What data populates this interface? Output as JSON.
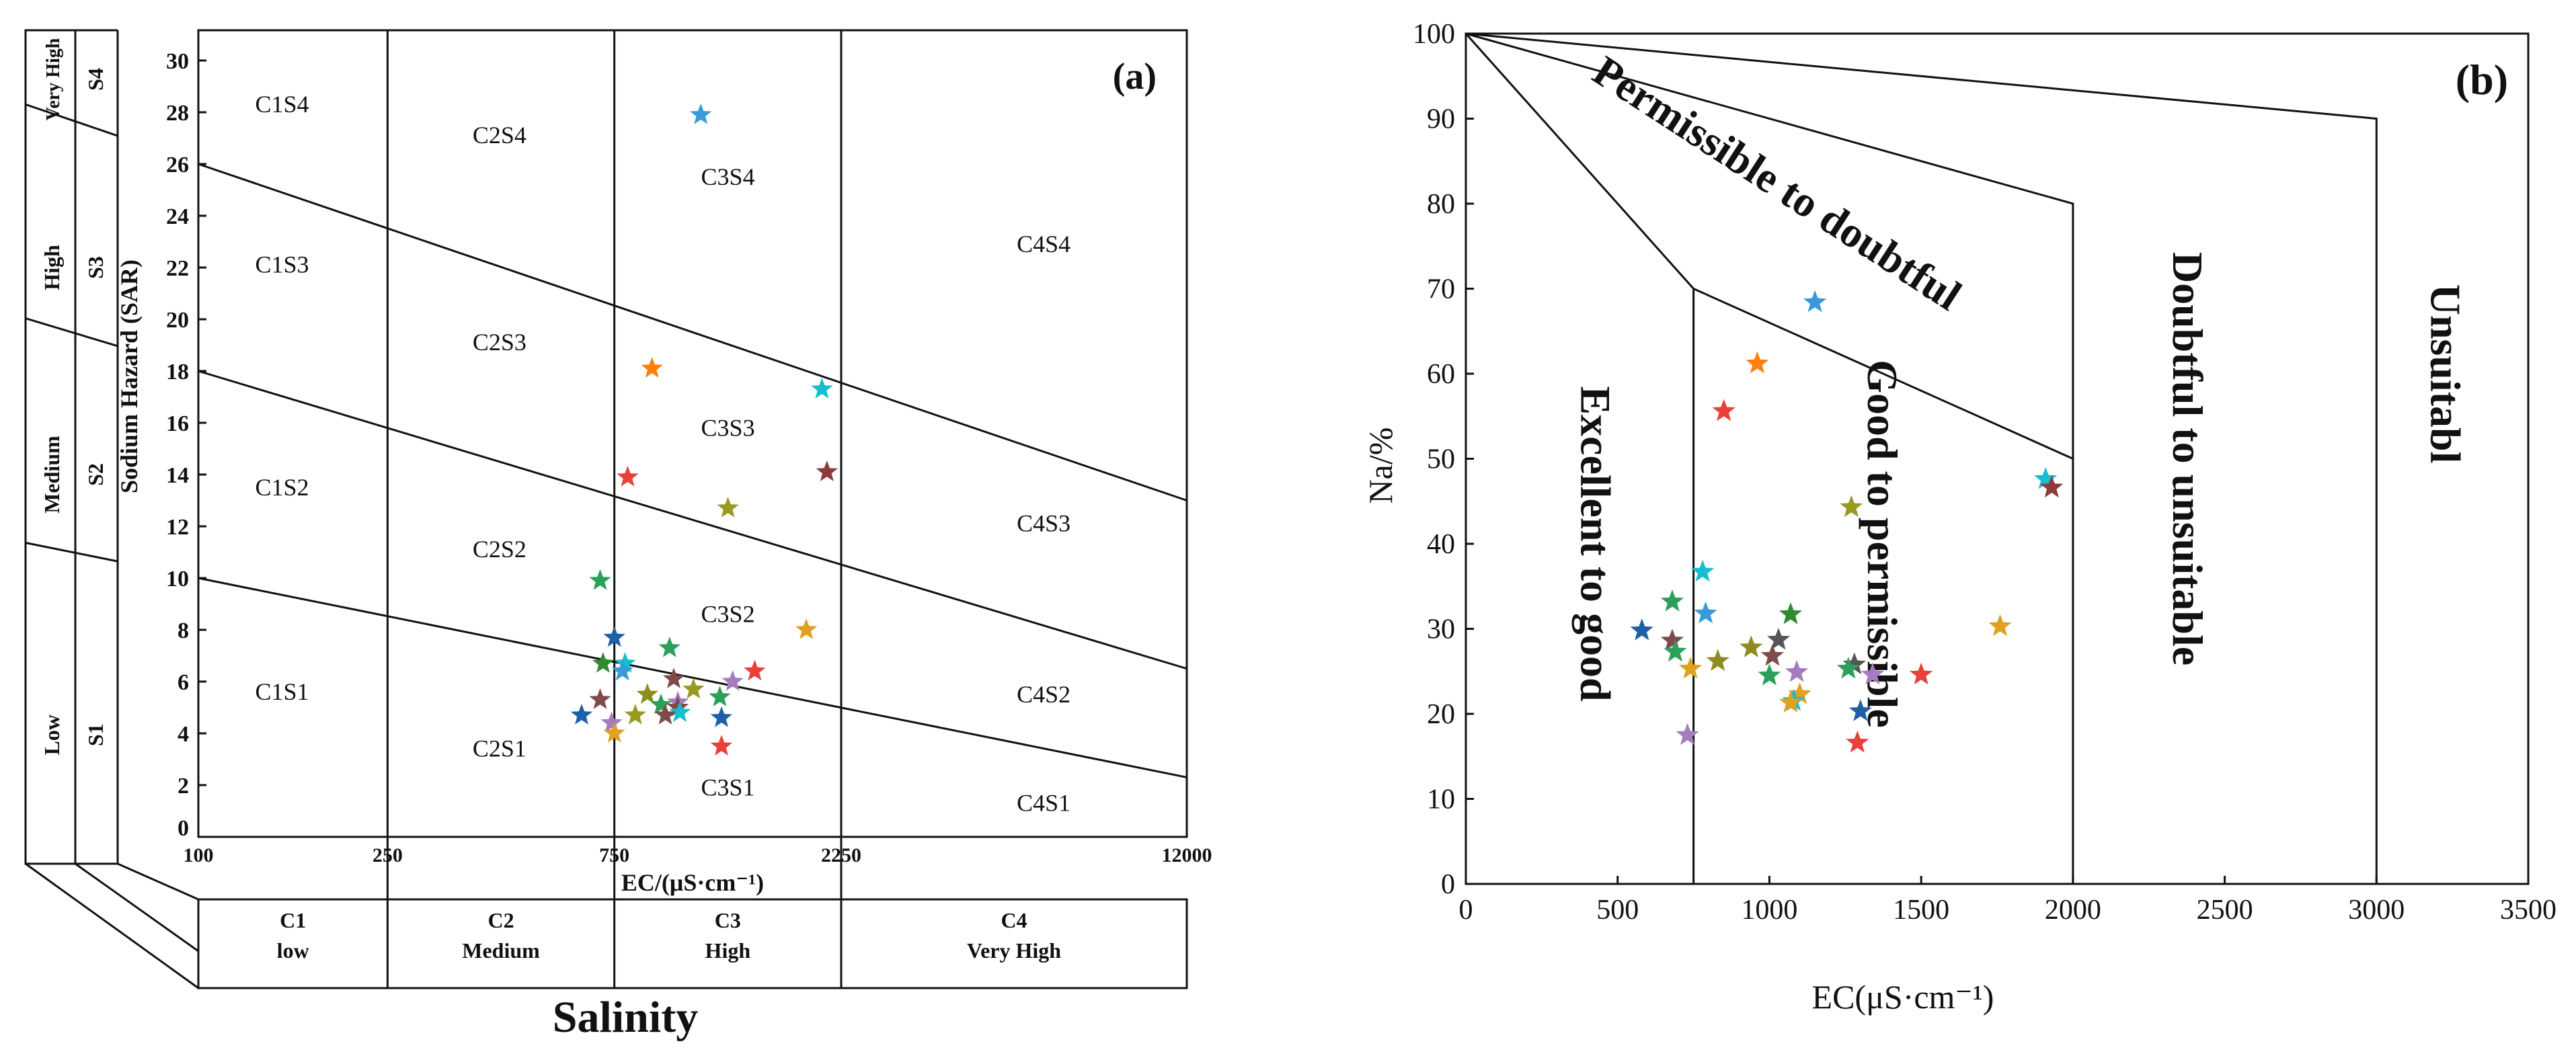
{
  "chart_data": [
    {
      "type": "scatter",
      "panel_label": "(a)",
      "x_scale": "log",
      "xlabel": "EC/(μS·cm⁻¹)",
      "ylabel": "Sodium Hazard (SAR)",
      "xlim": [
        100,
        12000
      ],
      "ylim": [
        0,
        30
      ],
      "x_ticks": [
        100,
        250,
        750,
        2250,
        12000
      ],
      "y_ticks": [
        0,
        2,
        4,
        6,
        8,
        10,
        12,
        14,
        16,
        18,
        20,
        22,
        24,
        26,
        28,
        30
      ],
      "salinity_title": "Salinity",
      "salinity_classes": [
        {
          "code": "C1",
          "name": "low"
        },
        {
          "code": "C2",
          "name": "Medium"
        },
        {
          "code": "C3",
          "name": "High"
        },
        {
          "code": "C4",
          "name": "Very High"
        }
      ],
      "sodium_classes": [
        {
          "code": "S1",
          "name": "Low"
        },
        {
          "code": "S2",
          "name": "Medium"
        },
        {
          "code": "S3",
          "name": "High"
        },
        {
          "code": "S4",
          "name": "Very High"
        }
      ],
      "sar_boundary_lines": [
        {
          "from": [
            100,
            10
          ],
          "to": [
            12000,
            2.3
          ]
        },
        {
          "from": [
            100,
            18
          ],
          "to": [
            12000,
            6.5
          ]
        },
        {
          "from": [
            100,
            26
          ],
          "to": [
            12000,
            13
          ]
        }
      ],
      "region_labels": [
        {
          "text": "C1S4",
          "ec": 150,
          "sar": 28
        },
        {
          "text": "C1S3",
          "ec": 150,
          "sar": 21.8
        },
        {
          "text": "C1S2",
          "ec": 150,
          "sar": 13.2
        },
        {
          "text": "C1S1",
          "ec": 150,
          "sar": 5.3
        },
        {
          "text": "C2S4",
          "ec": 430,
          "sar": 26.8
        },
        {
          "text": "C2S3",
          "ec": 430,
          "sar": 18.8
        },
        {
          "text": "C2S2",
          "ec": 430,
          "sar": 10.8
        },
        {
          "text": "C2S1",
          "ec": 430,
          "sar": 3.1
        },
        {
          "text": "C3S4",
          "ec": 1300,
          "sar": 25.2
        },
        {
          "text": "C3S3",
          "ec": 1300,
          "sar": 15.5
        },
        {
          "text": "C3S2",
          "ec": 1300,
          "sar": 8.3
        },
        {
          "text": "C3S1",
          "ec": 1300,
          "sar": 1.6
        },
        {
          "text": "C4S4",
          "ec": 6000,
          "sar": 22.6
        },
        {
          "text": "C4S3",
          "ec": 6000,
          "sar": 11.8
        },
        {
          "text": "C4S2",
          "ec": 6000,
          "sar": 5.2
        },
        {
          "text": "C4S1",
          "ec": 6000,
          "sar": 1.0
        }
      ],
      "points": [
        {
          "ec": 1140,
          "sar": 27.9,
          "color": "#3a9ad9"
        },
        {
          "ec": 2050,
          "sar": 17.3,
          "color": "#17becf"
        },
        {
          "ec": 900,
          "sar": 18.1,
          "color": "#ff7f0e"
        },
        {
          "ec": 2100,
          "sar": 14.1,
          "color": "#8c3a3a"
        },
        {
          "ec": 800,
          "sar": 13.9,
          "color": "#e8403a"
        },
        {
          "ec": 1300,
          "sar": 12.7,
          "color": "#9a9a20"
        },
        {
          "ec": 700,
          "sar": 9.9,
          "color": "#2ca05a"
        },
        {
          "ec": 1900,
          "sar": 8.0,
          "color": "#e0a020"
        },
        {
          "ec": 750,
          "sar": 7.7,
          "color": "#1f5fa8"
        },
        {
          "ec": 980,
          "sar": 7.3,
          "color": "#2ca05a"
        },
        {
          "ec": 710,
          "sar": 6.7,
          "color": "#2e8b2e"
        },
        {
          "ec": 790,
          "sar": 6.7,
          "color": "#17becf"
        },
        {
          "ec": 780,
          "sar": 6.4,
          "color": "#3a9ad9"
        },
        {
          "ec": 1480,
          "sar": 6.4,
          "color": "#e8403a"
        },
        {
          "ec": 1000,
          "sar": 6.1,
          "color": "#7f4a4a"
        },
        {
          "ec": 1330,
          "sar": 6.0,
          "color": "#a47cc0"
        },
        {
          "ec": 1100,
          "sar": 5.7,
          "color": "#9a9a20"
        },
        {
          "ec": 880,
          "sar": 5.5,
          "color": "#8c8c20"
        },
        {
          "ec": 1250,
          "sar": 5.4,
          "color": "#2ca05a"
        },
        {
          "ec": 700,
          "sar": 5.3,
          "color": "#7f4a4a"
        },
        {
          "ec": 1020,
          "sar": 5.2,
          "color": "#a47cc0"
        },
        {
          "ec": 940,
          "sar": 5.1,
          "color": "#2ca05a"
        },
        {
          "ec": 1020,
          "sar": 5.0,
          "color": "#7f4a4a"
        },
        {
          "ec": 1030,
          "sar": 4.8,
          "color": "#17becf"
        },
        {
          "ec": 960,
          "sar": 4.7,
          "color": "#7f4a4a"
        },
        {
          "ec": 640,
          "sar": 4.7,
          "color": "#1f5fa8"
        },
        {
          "ec": 830,
          "sar": 4.7,
          "color": "#9a9a20"
        },
        {
          "ec": 1260,
          "sar": 4.6,
          "color": "#1f5fa8"
        },
        {
          "ec": 740,
          "sar": 4.4,
          "color": "#a47cc0"
        },
        {
          "ec": 750,
          "sar": 4.0,
          "color": "#e0a020"
        },
        {
          "ec": 1260,
          "sar": 3.5,
          "color": "#e8403a"
        }
      ]
    },
    {
      "type": "scatter",
      "panel_label": "(b)",
      "xlabel": "EC(μS·cm⁻¹)",
      "ylabel": "Na/%",
      "xlim": [
        0,
        3500
      ],
      "ylim": [
        0,
        100
      ],
      "x_ticks": [
        0,
        500,
        1000,
        1500,
        2000,
        2500,
        3000,
        3500
      ],
      "y_ticks": [
        0,
        10,
        20,
        30,
        40,
        50,
        60,
        70,
        80,
        90,
        100
      ],
      "category_boundaries": [
        {
          "points": [
            [
              0,
              100
            ],
            [
              750,
              70
            ],
            [
              750,
              0
            ]
          ]
        },
        {
          "points": [
            [
              750,
              70
            ],
            [
              2000,
              50
            ],
            [
              2000,
              0
            ]
          ]
        },
        {
          "points": [
            [
              0,
              100
            ],
            [
              2000,
              80
            ],
            [
              2000,
              50
            ]
          ]
        },
        {
          "points": [
            [
              0,
              100
            ],
            [
              3000,
              90
            ],
            [
              3000,
              0
            ]
          ]
        }
      ],
      "categories": [
        {
          "label": "Excellent to good",
          "ec": 380,
          "na": 40,
          "rotate": 90
        },
        {
          "label": "Good to permissible",
          "ec": 1325,
          "na": 40,
          "rotate": 90
        },
        {
          "label": "Permissible to doubtful",
          "ec": 1000,
          "na": 81,
          "rotate": 33
        },
        {
          "label": "Doubtful to unsuitable",
          "ec": 2330,
          "na": 50,
          "rotate": 90
        },
        {
          "label": "Unsuitabl",
          "ec": 3180,
          "na": 60,
          "rotate": 90
        }
      ],
      "points": [
        {
          "ec": 1150,
          "na": 68.4,
          "color": "#3a9ad9"
        },
        {
          "ec": 960,
          "na": 61.2,
          "color": "#ff7f0e"
        },
        {
          "ec": 850,
          "na": 55.6,
          "color": "#e8403a"
        },
        {
          "ec": 1910,
          "na": 47.6,
          "color": "#17becf"
        },
        {
          "ec": 1930,
          "na": 46.6,
          "color": "#8c3a3a"
        },
        {
          "ec": 1270,
          "na": 44.3,
          "color": "#9a9a20"
        },
        {
          "ec": 780,
          "na": 36.7,
          "color": "#17becf"
        },
        {
          "ec": 680,
          "na": 33.2,
          "color": "#2ca05a"
        },
        {
          "ec": 790,
          "na": 31.8,
          "color": "#3a9ad9"
        },
        {
          "ec": 1070,
          "na": 31.7,
          "color": "#2e8b2e"
        },
        {
          "ec": 1760,
          "na": 30.3,
          "color": "#e0a020"
        },
        {
          "ec": 580,
          "na": 29.8,
          "color": "#1f5fa8"
        },
        {
          "ec": 1030,
          "na": 28.7,
          "color": "#555555"
        },
        {
          "ec": 680,
          "na": 28.6,
          "color": "#7f4a4a"
        },
        {
          "ec": 690,
          "na": 27.3,
          "color": "#2ca05a"
        },
        {
          "ec": 940,
          "na": 27.8,
          "color": "#8c8c20"
        },
        {
          "ec": 1010,
          "na": 26.8,
          "color": "#7f4a4a"
        },
        {
          "ec": 830,
          "na": 26.2,
          "color": "#8c8c20"
        },
        {
          "ec": 1280,
          "na": 25.8,
          "color": "#555555"
        },
        {
          "ec": 1260,
          "na": 25.3,
          "color": "#2ca05a"
        },
        {
          "ec": 740,
          "na": 25.3,
          "color": "#e0a020"
        },
        {
          "ec": 1090,
          "na": 24.9,
          "color": "#a47cc0"
        },
        {
          "ec": 1340,
          "na": 24.6,
          "color": "#a47cc0"
        },
        {
          "ec": 1500,
          "na": 24.6,
          "color": "#e8403a"
        },
        {
          "ec": 1000,
          "na": 24.5,
          "color": "#2ca05a"
        },
        {
          "ec": 1100,
          "na": 22.3,
          "color": "#e0a020"
        },
        {
          "ec": 1080,
          "na": 21.5,
          "color": "#17becf"
        },
        {
          "ec": 1070,
          "na": 21.3,
          "color": "#e0a020"
        },
        {
          "ec": 1300,
          "na": 20.3,
          "color": "#1f5fa8"
        },
        {
          "ec": 730,
          "na": 17.5,
          "color": "#a47cc0"
        },
        {
          "ec": 1290,
          "na": 16.6,
          "color": "#e8403a"
        }
      ]
    }
  ]
}
